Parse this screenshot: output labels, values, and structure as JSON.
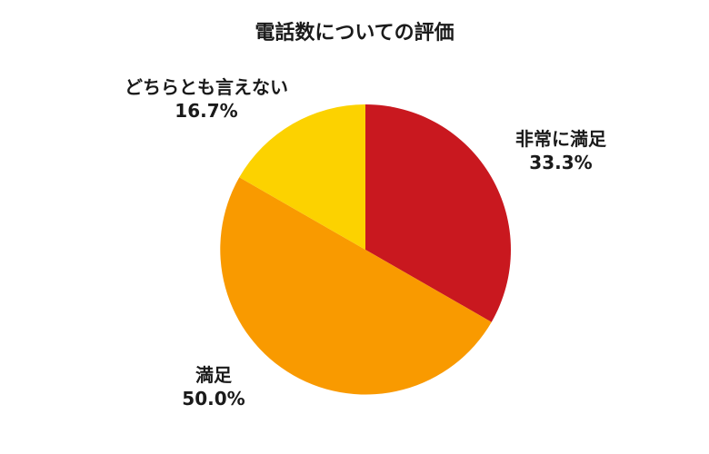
{
  "chart_data": {
    "type": "pie",
    "title": "電話数についての評価",
    "slices": [
      {
        "label": "非常に満足",
        "value": 33.3,
        "value_label": "33.3%",
        "color": "#C9181F"
      },
      {
        "label": "満足",
        "value": 50.0,
        "value_label": "50.0%",
        "color": "#F99A00"
      },
      {
        "label": "どちらとも言えない",
        "value": 16.7,
        "value_label": "16.7%",
        "color": "#FCD200"
      }
    ],
    "start_angle": "12 o'clock",
    "direction": "clockwise",
    "labels_outside": true
  }
}
